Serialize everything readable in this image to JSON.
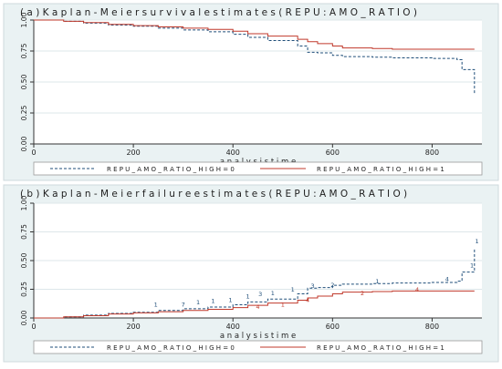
{
  "colors": {
    "page_bg": "#ffffff",
    "panel_bg": "#eaf2f3",
    "plot_bg": "#ffffff",
    "grid": "#dde7ea",
    "axis": "#333333",
    "text": "#1f1f1f",
    "series_low": "#1f4e79",
    "series_high": "#c0392b"
  },
  "chart_data": [
    {
      "type": "line",
      "title": "( a )  K a p l a n - M e i e r  s u r v i v a l  e s t i m a t e s ( R E P U  :  A M O _ R A T I O )",
      "xlabel": "a n a l y s i s  t i m  e",
      "ylabel": "",
      "xlim": [
        0,
        900
      ],
      "ylim": [
        0,
        1
      ],
      "x_ticks": [
        0,
        200,
        400,
        600,
        800
      ],
      "x_tick_labels": [
        "0",
        "200",
        "400",
        "600",
        "800"
      ],
      "y_ticks": [
        0,
        0.25,
        0.5,
        0.75,
        1
      ],
      "y_tick_labels": [
        "0.00",
        "0.25",
        "0.50",
        "0.75",
        "1.00"
      ],
      "grid": true,
      "legend_position": "bottom",
      "series": [
        {
          "name": "R E P U _ A M O _ R A T I O _ H I G H  =  0",
          "style": "dashed",
          "x": [
            0,
            60,
            100,
            150,
            200,
            250,
            300,
            350,
            400,
            430,
            470,
            530,
            550,
            570,
            600,
            620,
            680,
            720,
            800,
            850,
            860,
            875,
            885
          ],
          "y": [
            1.0,
            0.99,
            0.975,
            0.96,
            0.95,
            0.935,
            0.92,
            0.905,
            0.885,
            0.86,
            0.835,
            0.79,
            0.74,
            0.735,
            0.715,
            0.705,
            0.7,
            0.695,
            0.69,
            0.68,
            0.6,
            0.6,
            0.4
          ]
        },
        {
          "name": "R E P U _ A M O _ R A T I O _ H I G H  =  1",
          "style": "solid",
          "x": [
            0,
            60,
            100,
            150,
            200,
            250,
            300,
            350,
            400,
            430,
            470,
            530,
            550,
            570,
            600,
            620,
            680,
            720,
            800,
            850,
            885
          ],
          "y": [
            1.0,
            0.99,
            0.98,
            0.965,
            0.955,
            0.945,
            0.935,
            0.925,
            0.91,
            0.89,
            0.87,
            0.845,
            0.825,
            0.81,
            0.79,
            0.775,
            0.77,
            0.765,
            0.765,
            0.765,
            0.765
          ]
        }
      ]
    },
    {
      "type": "line",
      "title": "( b )  K a p l a n - M e i e r  f a i l u r e  e s t i m a t e s ( R E P U  :  A M O _ R A T I O )",
      "xlabel": "a n a l y s i s  t i m  e",
      "ylabel": "",
      "xlim": [
        0,
        900
      ],
      "ylim": [
        0,
        1
      ],
      "x_ticks": [
        0,
        200,
        400,
        600,
        800
      ],
      "x_tick_labels": [
        "0",
        "200",
        "400",
        "600",
        "800"
      ],
      "y_ticks": [
        0,
        0.25,
        0.5,
        0.75,
        1
      ],
      "y_tick_labels": [
        "0.00",
        "0.25",
        "0.50",
        "0.75",
        "1.00"
      ],
      "grid": true,
      "legend_position": "bottom",
      "series": [
        {
          "name": "R E P U _ A M O _ R A T I O _ H I G H  =  0",
          "style": "dashed",
          "x": [
            0,
            60,
            100,
            150,
            200,
            250,
            300,
            350,
            400,
            430,
            470,
            530,
            550,
            570,
            600,
            620,
            680,
            720,
            800,
            850,
            860,
            875,
            885
          ],
          "y": [
            0.0,
            0.01,
            0.025,
            0.04,
            0.05,
            0.065,
            0.08,
            0.095,
            0.115,
            0.14,
            0.165,
            0.21,
            0.26,
            0.265,
            0.285,
            0.295,
            0.3,
            0.305,
            0.31,
            0.32,
            0.4,
            0.4,
            0.6
          ]
        },
        {
          "name": "R E P U _ A M O _ R A T I O _ H I G H  =  1",
          "style": "solid",
          "x": [
            0,
            60,
            100,
            150,
            200,
            250,
            300,
            350,
            400,
            430,
            470,
            530,
            550,
            570,
            600,
            620,
            680,
            720,
            800,
            850,
            885
          ],
          "y": [
            0.0,
            0.01,
            0.02,
            0.035,
            0.045,
            0.055,
            0.065,
            0.075,
            0.09,
            0.11,
            0.13,
            0.155,
            0.175,
            0.19,
            0.21,
            0.225,
            0.23,
            0.235,
            0.235,
            0.235,
            0.235
          ]
        }
      ],
      "annotations": [
        {
          "x": 245,
          "y": 0.1,
          "text": "1"
        },
        {
          "x": 300,
          "y": 0.1,
          "text": "7"
        },
        {
          "x": 330,
          "y": 0.12,
          "text": "1"
        },
        {
          "x": 360,
          "y": 0.13,
          "text": "1"
        },
        {
          "x": 395,
          "y": 0.14,
          "text": "1"
        },
        {
          "x": 430,
          "y": 0.17,
          "text": "1"
        },
        {
          "x": 455,
          "y": 0.19,
          "text": "3"
        },
        {
          "x": 480,
          "y": 0.2,
          "text": "1"
        },
        {
          "x": 520,
          "y": 0.23,
          "text": "1"
        },
        {
          "x": 560,
          "y": 0.26,
          "text": "3"
        },
        {
          "x": 600,
          "y": 0.27,
          "text": "2"
        },
        {
          "x": 690,
          "y": 0.3,
          "text": "1"
        },
        {
          "x": 830,
          "y": 0.32,
          "text": "4"
        },
        {
          "x": 880,
          "y": 0.44,
          "text": "1"
        },
        {
          "x": 890,
          "y": 0.65,
          "text": "1"
        },
        {
          "x": 450,
          "y": 0.08,
          "text": "4"
        },
        {
          "x": 500,
          "y": 0.1,
          "text": "1"
        },
        {
          "x": 550,
          "y": 0.14,
          "text": "4"
        },
        {
          "x": 660,
          "y": 0.2,
          "text": "2"
        },
        {
          "x": 770,
          "y": 0.23,
          "text": "4"
        }
      ]
    }
  ]
}
